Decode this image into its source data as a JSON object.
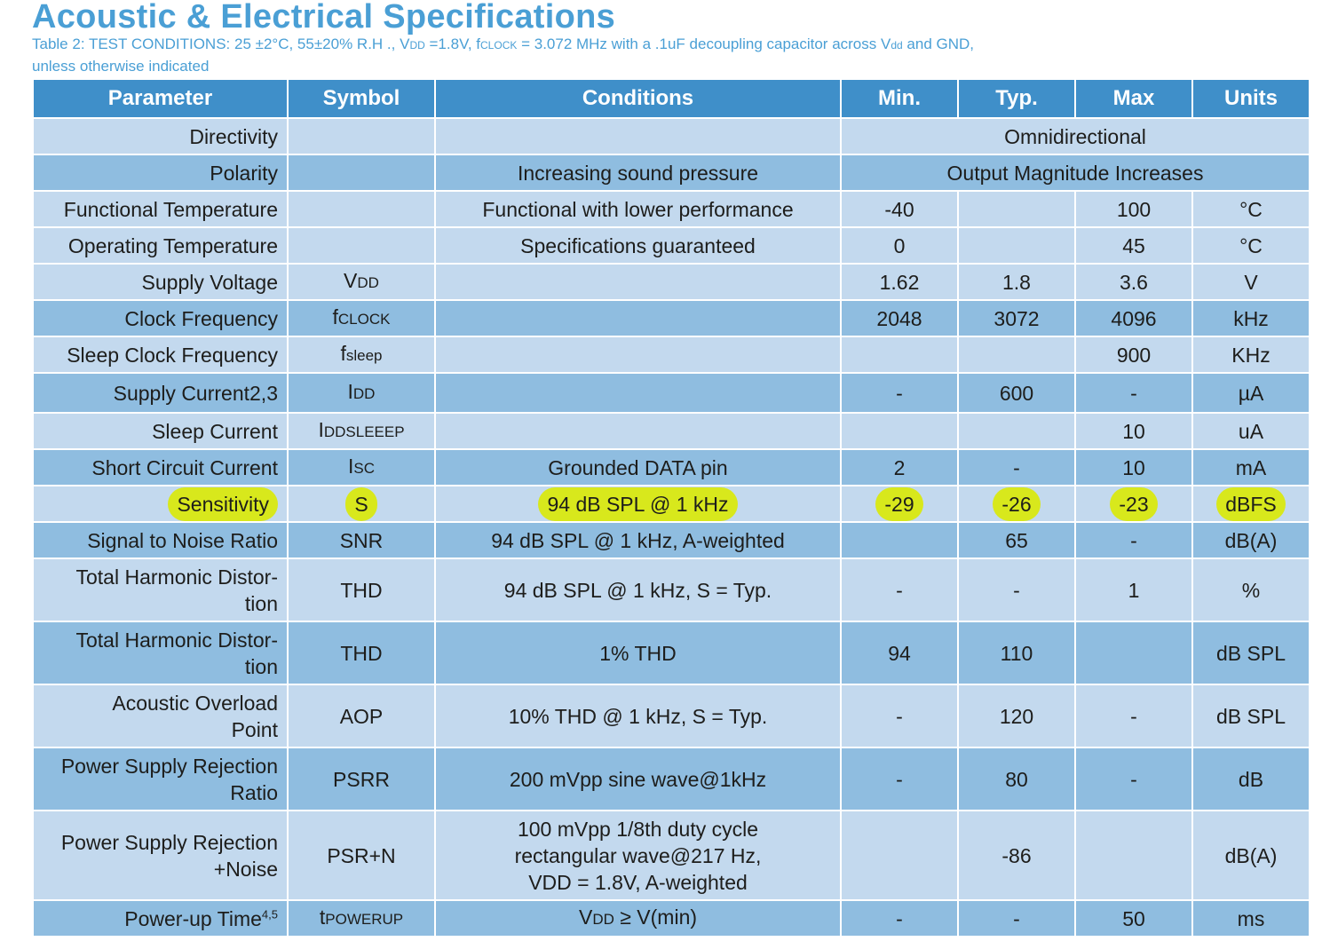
{
  "title": "Acoustic & Electrical Specifications",
  "subtitle_line1_a": "Table 2: TEST CONDITIONS: 25 ±2°C, 55±20% R.H ., V",
  "subtitle_line1_b": "DD",
  "subtitle_line1_c": " =1.8V, f",
  "subtitle_line1_d": "CLOCK",
  "subtitle_line1_e": " = 3.072 MHz with a .1uF decoupling capacitor across V",
  "subtitle_line1_f": "dd",
  "subtitle_line1_g": " and GND,",
  "subtitle_line2": "unless otherwise indicated",
  "colors": {
    "header_bg": "#3f8fc9",
    "row_light": "#c3d9ee",
    "row_dark": "#8fbde0",
    "highlight": "#d8e81c",
    "title": "#4a9fd5"
  },
  "headers": [
    "Parameter",
    "Symbol",
    "Conditions",
    "Min.",
    "Typ.",
    "Max",
    "Units"
  ],
  "rows": {
    "directivity": {
      "param": "Directivity",
      "merged": "Omnidirectional"
    },
    "polarity": {
      "param": "Polarity",
      "cond": "Increasing sound pressure",
      "merged": "Output Magnitude Increases"
    },
    "func_temp": {
      "param": "Functional Temperature",
      "cond": "Functional with lower performance",
      "min": "-40",
      "typ": "",
      "max": "100",
      "units": "°C"
    },
    "op_temp": {
      "param": "Operating Temperature",
      "cond": "Specifications guaranteed",
      "min": "0",
      "typ": "",
      "max": "45",
      "units": "°C"
    },
    "supply_v": {
      "param": "Supply Voltage",
      "sym_main": "V",
      "sym_sub": "DD",
      "min": "1.62",
      "typ": "1.8",
      "max": "3.6",
      "units": "V"
    },
    "clock_f": {
      "param": "Clock Frequency",
      "sym_main": "f",
      "sym_sub": "CLOCK",
      "min": "2048",
      "typ": "3072",
      "max": "4096",
      "units": "kHz"
    },
    "sleep_clk": {
      "param": "Sleep Clock Frequency",
      "sym_main": "f",
      "sym_sub": "sleep",
      "max": "900",
      "units": "KHz"
    },
    "supply_i": {
      "param": "Supply Current2,3",
      "sym_main": "I",
      "sym_sub": "DD",
      "min": "-",
      "typ": "600",
      "max": "-",
      "units": "µA"
    },
    "sleep_i": {
      "param": "Sleep Current",
      "sym_main": "I",
      "sym_sub": "DDSLEEEP",
      "max": "10",
      "units": "uA"
    },
    "short_i": {
      "param": "Short Circuit Current",
      "sym_main": "I",
      "sym_sub": "SC",
      "cond": "Grounded DATA pin",
      "min": "2",
      "typ": "-",
      "max": "10",
      "units": "mA"
    },
    "sensitivity": {
      "param": "Sensitivity",
      "sym": "S",
      "cond": "94 dB SPL @ 1 kHz",
      "min": "-29",
      "typ": "-26",
      "max": "-23",
      "units": "dBFS"
    },
    "snr": {
      "param": "Signal to Noise Ratio",
      "sym": "SNR",
      "cond": "94 dB SPL @ 1 kHz, A-weighted",
      "typ": "65",
      "max": "-",
      "units": "dB(A)"
    },
    "thd1": {
      "param_l1": "Total Harmonic Distor-",
      "param_l2": "tion",
      "sym": "THD",
      "cond": "94 dB SPL @ 1 kHz, S = Typ.",
      "min": "-",
      "typ": "-",
      "max": "1",
      "units": "%"
    },
    "thd2": {
      "param_l1": "Total Harmonic Distor-",
      "param_l2": "tion",
      "sym": "THD",
      "cond": "1% THD",
      "min": "94",
      "typ": "110",
      "units": "dB SPL"
    },
    "aop": {
      "param_l1": "Acoustic Overload",
      "param_l2": "Point",
      "sym": "AOP",
      "cond": "10% THD @ 1 kHz, S = Typ.",
      "min": "-",
      "typ": "120",
      "max": "-",
      "units": "dB SPL"
    },
    "psrr": {
      "param_l1": "Power Supply Rejection",
      "param_l2": "Ratio",
      "sym": "PSRR",
      "cond": "200 mVpp sine wave@1kHz",
      "min": "-",
      "typ": "80",
      "max": "-",
      "units": "dB"
    },
    "psrn": {
      "param_l1": "Power Supply Rejection",
      "param_l2": "+Noise",
      "sym": "PSR+N",
      "cond_l1": "100 mVpp 1/8th duty cycle",
      "cond_l2": "rectangular wave@217 Hz,",
      "cond_l3": "VDD = 1.8V, A-weighted",
      "typ": "-86",
      "units": "dB(A)"
    },
    "powerup": {
      "param": "Power-up Time",
      "param_sup": "4,5",
      "sym_main": "t",
      "sym_sub": "POWERUP",
      "cond_main": "V",
      "cond_sub": "DD",
      "cond_rest": " ≥ V(min)",
      "min": "-",
      "typ": "-",
      "max": "50",
      "units": "ms"
    }
  }
}
